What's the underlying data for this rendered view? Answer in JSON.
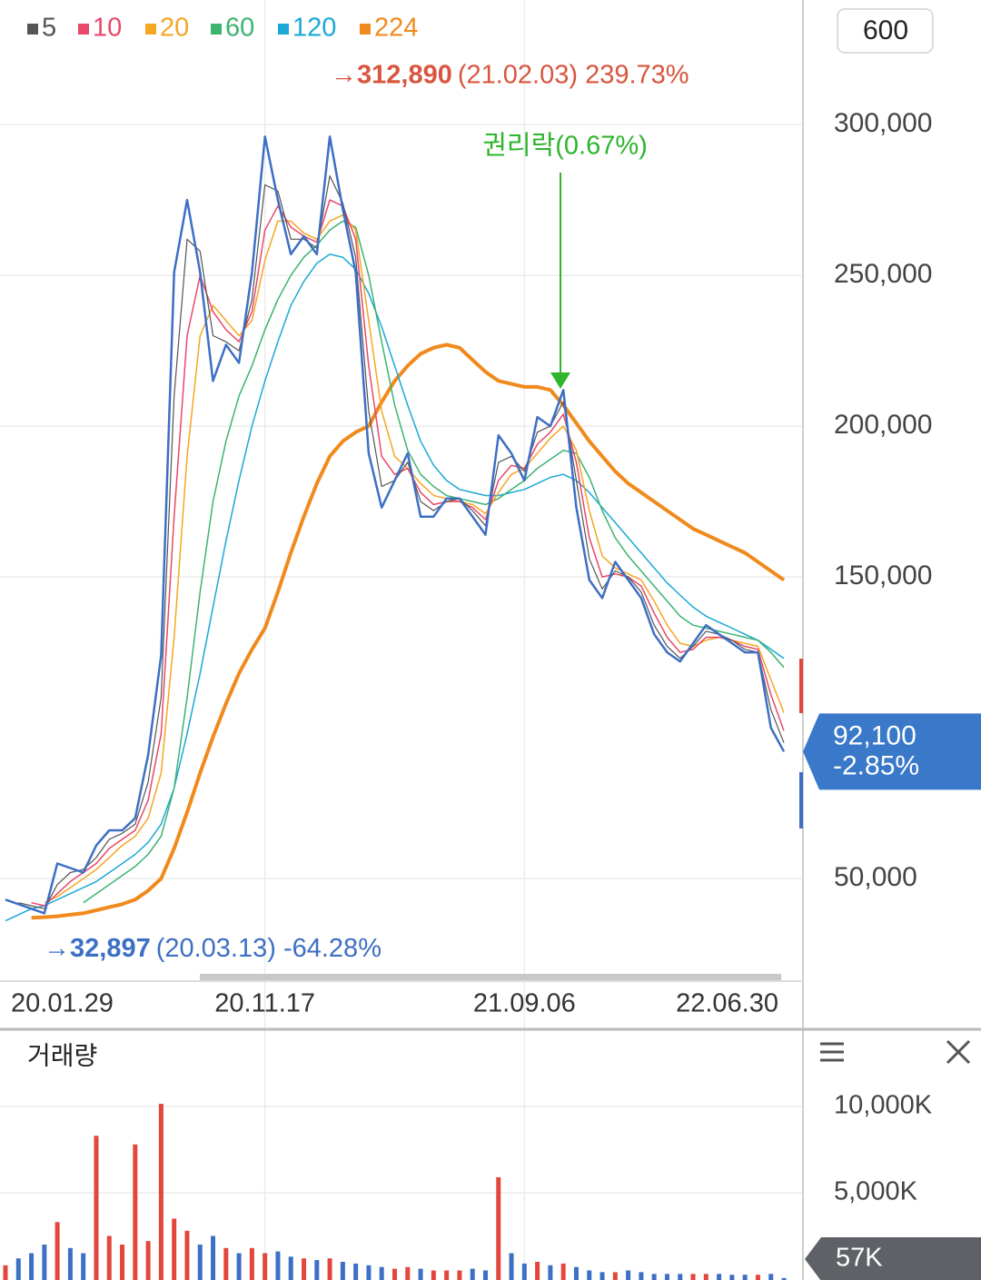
{
  "period_button": "600",
  "chart_data": [
    {
      "type": "line",
      "color": "#3d6fc4",
      "values": [
        43000,
        41500,
        40000,
        38500,
        55000,
        53500,
        52000,
        61000,
        66000,
        66000,
        70000,
        91000,
        124000,
        251000,
        275000,
        251000,
        215000,
        227000,
        221000,
        251000,
        296000,
        275000,
        257000,
        263000,
        257000,
        296000,
        272000,
        251000,
        191000,
        173000,
        182000,
        191000,
        170000,
        170000,
        176000,
        176000,
        170000,
        164000,
        197000,
        191000,
        182000,
        203000,
        200000,
        212000,
        173000,
        149000,
        143000,
        155000,
        149000,
        143000,
        131000,
        125000,
        122000,
        128000,
        134000,
        131000,
        128000,
        125000,
        125000,
        100000,
        92100
      ],
      "categories": [
        "20.01.29",
        null,
        null,
        null,
        null,
        null,
        null,
        null,
        null,
        null,
        null,
        null,
        null,
        null,
        null,
        null,
        null,
        null,
        null,
        null,
        "20.11.17",
        null,
        null,
        null,
        null,
        null,
        null,
        null,
        null,
        null,
        null,
        null,
        null,
        null,
        null,
        null,
        null,
        null,
        null,
        null,
        "21.09.06",
        null,
        null,
        null,
        null,
        null,
        null,
        null,
        null,
        null,
        null,
        null,
        null,
        null,
        null,
        null,
        null,
        null,
        null,
        null,
        "22.06.30"
      ],
      "series": [
        {
          "name": "5",
          "color": "#555555",
          "line_width": 1.2,
          "values": [
            null,
            42000,
            41000,
            40000,
            48000,
            52000,
            53000,
            57000,
            63000,
            65000,
            68000,
            82000,
            110000,
            210000,
            262000,
            258000,
            230000,
            228000,
            225000,
            242000,
            280000,
            278000,
            262000,
            262000,
            259000,
            283000,
            274000,
            256000,
            205000,
            180000,
            182000,
            188000,
            175000,
            172000,
            175000,
            176000,
            172000,
            167000,
            188000,
            190000,
            185000,
            198000,
            200000,
            208000,
            182000,
            156000,
            146000,
            152000,
            150000,
            145000,
            134000,
            127000,
            123000,
            127000,
            132000,
            131000,
            129000,
            126000,
            125000,
            106000,
            95000
          ]
        },
        {
          "name": "10",
          "color": "#e8486a",
          "line_width": 1.5,
          "values": [
            null,
            null,
            42000,
            41000,
            45000,
            49000,
            52000,
            55000,
            60000,
            63000,
            66000,
            76000,
            98000,
            170000,
            230000,
            250000,
            238000,
            232000,
            228000,
            238000,
            265000,
            273000,
            266000,
            263000,
            261000,
            275000,
            273000,
            262000,
            220000,
            190000,
            184000,
            186000,
            178000,
            174000,
            175000,
            175000,
            173000,
            169000,
            182000,
            187000,
            186000,
            194000,
            198000,
            204000,
            188000,
            163000,
            150000,
            151000,
            150000,
            147000,
            138000,
            130000,
            125000,
            126000,
            130000,
            130000,
            129000,
            127000,
            126000,
            111000,
            99000
          ]
        },
        {
          "name": "20",
          "color": "#f5a623",
          "line_width": 1.5,
          "values": [
            null,
            null,
            null,
            42000,
            44000,
            47000,
            50000,
            53000,
            57000,
            61000,
            64000,
            70000,
            85000,
            130000,
            190000,
            230000,
            240000,
            235000,
            230000,
            235000,
            255000,
            268000,
            268000,
            264000,
            262000,
            268000,
            270000,
            265000,
            235000,
            205000,
            190000,
            186000,
            181000,
            177000,
            176000,
            175000,
            174000,
            171000,
            178000,
            184000,
            186000,
            191000,
            196000,
            200000,
            192000,
            172000,
            157000,
            153000,
            151000,
            149000,
            142000,
            134000,
            128000,
            127000,
            129000,
            130000,
            129000,
            128000,
            127000,
            116000,
            105000
          ]
        },
        {
          "name": "60",
          "color": "#3cb371",
          "line_width": 1.5,
          "values": [
            null,
            null,
            null,
            null,
            null,
            null,
            42000,
            45000,
            48000,
            51000,
            54000,
            58000,
            64000,
            80000,
            110000,
            145000,
            175000,
            195000,
            210000,
            220000,
            232000,
            242000,
            250000,
            256000,
            260000,
            265000,
            268000,
            266000,
            250000,
            228000,
            207000,
            192000,
            184000,
            180000,
            177000,
            176000,
            175000,
            174000,
            176000,
            179000,
            182000,
            186000,
            189000,
            192000,
            191000,
            183000,
            172000,
            163000,
            157000,
            152000,
            147000,
            142000,
            137000,
            134000,
            133000,
            132000,
            131000,
            130000,
            129000,
            125000,
            120000
          ]
        },
        {
          "name": "120",
          "color": "#1ba8d6",
          "line_width": 1.5,
          "values": [
            36000,
            38000,
            40000,
            41000,
            43000,
            45000,
            47000,
            49000,
            52000,
            55000,
            58000,
            62000,
            68000,
            80000,
            98000,
            118000,
            140000,
            162000,
            182000,
            200000,
            215000,
            228000,
            240000,
            248000,
            254000,
            257000,
            256000,
            252000,
            244000,
            233000,
            220000,
            207000,
            195000,
            187000,
            182000,
            179000,
            178000,
            177000,
            177000,
            178000,
            179000,
            181000,
            183000,
            184000,
            182000,
            178000,
            173000,
            168000,
            163000,
            158000,
            153000,
            148000,
            144000,
            140000,
            137000,
            135000,
            133000,
            131000,
            129000,
            126000,
            123000
          ]
        },
        {
          "name": "224",
          "color": "#f08a1c",
          "line_width": 4,
          "values": [
            null,
            null,
            37000,
            37200,
            37500,
            38000,
            38500,
            39500,
            40500,
            41500,
            43000,
            46000,
            50000,
            60000,
            72000,
            85000,
            97000,
            108000,
            118000,
            126000,
            133000,
            145000,
            158000,
            170000,
            181000,
            190000,
            195000,
            198000,
            200000,
            208000,
            215000,
            220000,
            224000,
            226000,
            227000,
            226000,
            222000,
            218000,
            215000,
            214000,
            213000,
            213000,
            212000,
            207000,
            201000,
            195000,
            190000,
            185000,
            181000,
            178000,
            175000,
            172000,
            169000,
            166000,
            164000,
            162000,
            160000,
            158000,
            155000,
            152000,
            149000
          ]
        }
      ],
      "ylim": [
        17500,
        341300
      ],
      "yticks": [
        {
          "value": 50000,
          "label": "50,000"
        },
        {
          "value": 150000,
          "label": "150,000"
        },
        {
          "value": 200000,
          "label": "200,000"
        },
        {
          "value": 250000,
          "label": "250,000"
        },
        {
          "value": 300000,
          "label": "300,000"
        }
      ],
      "grid": true,
      "high": {
        "marker": "→",
        "value": 312890,
        "value_label": "312,890",
        "detail": "(21.02.03) 239.73%"
      },
      "low": {
        "marker": "→",
        "value": 32897,
        "value_label": "32,897",
        "detail": "(20.03.13) -64.28%"
      },
      "event": {
        "label": "권리락(0.67%)"
      },
      "last": {
        "value": 92100,
        "label": "92,100",
        "change": "-2.85%"
      }
    },
    {
      "type": "bar",
      "title": "거래량",
      "values": [
        800,
        1200,
        1500,
        2000,
        3300,
        1800,
        1500,
        8300,
        2500,
        2000,
        7800,
        2200,
        10150,
        3500,
        2800,
        2000,
        2500,
        1800,
        1500,
        1800,
        1500,
        1600,
        1300,
        1200,
        1100,
        1200,
        1000,
        900,
        800,
        700,
        600,
        700,
        600,
        500,
        500,
        500,
        600,
        500,
        5900,
        1500,
        900,
        1000,
        800,
        900,
        700,
        500,
        400,
        400,
        500,
        400,
        300,
        300,
        300,
        300,
        300,
        300,
        250,
        250,
        250,
        300,
        57
      ],
      "ylim": [
        0,
        14100
      ],
      "yticks": [
        {
          "value": 5000,
          "label": "5,000K"
        },
        {
          "value": 10000,
          "label": "10,000K"
        }
      ],
      "grid": true,
      "last": {
        "value": 57,
        "label": "57K"
      }
    }
  ]
}
